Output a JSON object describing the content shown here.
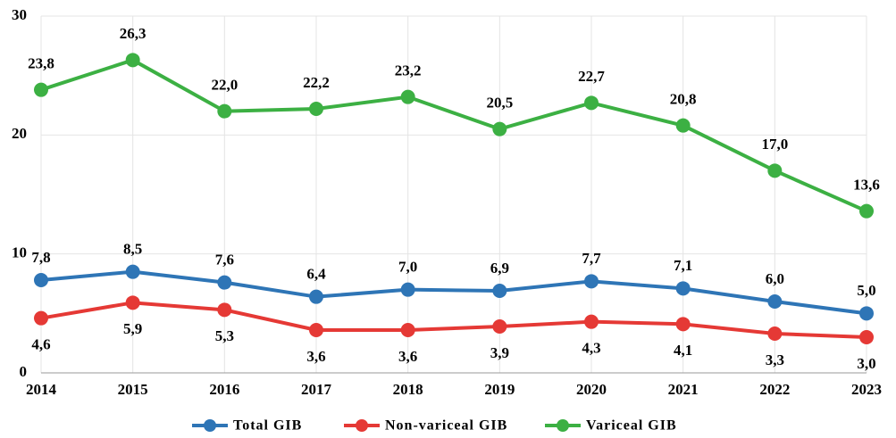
{
  "chart_data": {
    "type": "line",
    "categories": [
      "2014",
      "2015",
      "2016",
      "2017",
      "2018",
      "2019",
      "2020",
      "2021",
      "2022",
      "2023"
    ],
    "series": [
      {
        "name": "Total GIB",
        "color": "#2e75b6",
        "values": [
          7.8,
          8.5,
          7.6,
          6.4,
          7.0,
          6.9,
          7.7,
          7.1,
          6.0,
          5.0
        ],
        "value_labels": [
          "7,8",
          "8,5",
          "7,6",
          "6,4",
          "7,0",
          "6,9",
          "7,7",
          "7,1",
          "6,0",
          "5,0"
        ]
      },
      {
        "name": "Non-variceal GIB",
        "color": "#e53935",
        "values": [
          4.6,
          5.9,
          5.3,
          3.6,
          3.6,
          3.9,
          4.3,
          4.1,
          3.3,
          3.0
        ],
        "value_labels": [
          "4,6",
          "5,9",
          "5,3",
          "3,6",
          "3,6",
          "3,9",
          "4,3",
          "4,1",
          "3,3",
          "3,0"
        ]
      },
      {
        "name": "Variceal GIB",
        "color": "#3cb043",
        "values": [
          23.8,
          26.3,
          22.0,
          22.2,
          23.2,
          20.5,
          22.7,
          20.8,
          17.0,
          13.6
        ],
        "value_labels": [
          "23,8",
          "26,3",
          "22,0",
          "22,2",
          "23,2",
          "20,5",
          "22,7",
          "20,8",
          "17,0",
          "13,6"
        ]
      }
    ],
    "ylim": [
      0,
      30
    ],
    "yticks": [
      0,
      10,
      20,
      30
    ],
    "grid": true,
    "legend": "bottom"
  }
}
